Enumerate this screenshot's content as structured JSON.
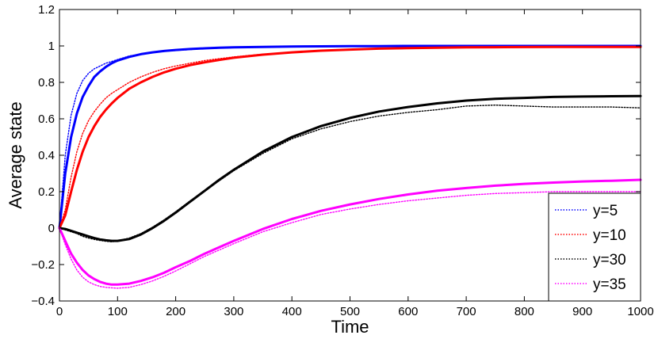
{
  "chart_data": {
    "type": "line",
    "title": "",
    "xlabel": "Time",
    "ylabel": "Average state",
    "xlim": [
      0,
      1000
    ],
    "ylim": [
      -0.4,
      1.2
    ],
    "x_ticks": [
      0,
      100,
      200,
      300,
      400,
      500,
      600,
      700,
      800,
      900,
      1000
    ],
    "x_tick_labels": [
      "0",
      "100",
      "200",
      "300",
      "400",
      "500",
      "600",
      "700",
      "800",
      "900",
      "1000"
    ],
    "y_ticks": [
      -0.4,
      -0.2,
      0,
      0.2,
      0.4,
      0.6,
      0.8,
      1,
      1.2
    ],
    "y_tick_labels": [
      "−0.4",
      "−0.2",
      "0",
      "0.2",
      "0.4",
      "0.6",
      "0.8",
      "1",
      "1.2"
    ],
    "grid": false,
    "legend_position": "bottom-right",
    "x": [
      0,
      10,
      20,
      30,
      40,
      50,
      60,
      70,
      80,
      90,
      100,
      120,
      140,
      160,
      180,
      200,
      225,
      250,
      275,
      300,
      350,
      400,
      450,
      500,
      550,
      600,
      650,
      700,
      750,
      800,
      850,
      900,
      950,
      1000
    ],
    "series": [
      {
        "name": "y=5",
        "color": "#0000ff",
        "style": "solid",
        "values": [
          0,
          0.3,
          0.5,
          0.63,
          0.72,
          0.78,
          0.83,
          0.86,
          0.885,
          0.905,
          0.92,
          0.94,
          0.955,
          0.965,
          0.972,
          0.978,
          0.983,
          0.987,
          0.99,
          0.992,
          0.995,
          0.997,
          0.998,
          0.999,
          0.999,
          1.0,
          1.0,
          1.0,
          1.0,
          1.0,
          1.0,
          1.0,
          1.0,
          1.0
        ]
      },
      {
        "name": "y=5 (simulation)",
        "color": "#0000ff",
        "style": "dotted",
        "values": [
          0,
          0.4,
          0.62,
          0.74,
          0.81,
          0.85,
          0.875,
          0.89,
          0.905,
          0.915,
          0.925,
          0.945,
          0.955,
          0.965,
          0.97,
          0.975,
          0.98,
          0.985,
          0.988,
          0.99,
          0.993,
          0.995,
          0.997,
          0.998,
          0.998,
          0.999,
          0.999,
          1.0,
          1.0,
          1.0,
          1.0,
          1.0,
          1.0,
          1.0
        ]
      },
      {
        "name": "y=10",
        "color": "#ff0000",
        "style": "solid",
        "values": [
          0,
          0.07,
          0.2,
          0.32,
          0.42,
          0.5,
          0.56,
          0.61,
          0.65,
          0.685,
          0.715,
          0.765,
          0.8,
          0.83,
          0.855,
          0.875,
          0.895,
          0.91,
          0.923,
          0.935,
          0.952,
          0.965,
          0.974,
          0.98,
          0.985,
          0.988,
          0.99,
          0.992,
          0.993,
          0.994,
          0.995,
          0.995,
          0.995,
          0.995
        ]
      },
      {
        "name": "y=10 (simulation)",
        "color": "#ff0000",
        "style": "dotted",
        "values": [
          0,
          0.1,
          0.28,
          0.42,
          0.52,
          0.59,
          0.64,
          0.68,
          0.715,
          0.74,
          0.76,
          0.8,
          0.83,
          0.855,
          0.875,
          0.89,
          0.905,
          0.92,
          0.93,
          0.94,
          0.955,
          0.965,
          0.975,
          0.98,
          0.985,
          0.988,
          0.99,
          0.992,
          0.993,
          0.994,
          0.995,
          0.995,
          0.995,
          0.995
        ]
      },
      {
        "name": "y=30",
        "color": "#000000",
        "style": "solid",
        "values": [
          0,
          -0.005,
          -0.015,
          -0.025,
          -0.035,
          -0.045,
          -0.055,
          -0.062,
          -0.067,
          -0.07,
          -0.07,
          -0.06,
          -0.035,
          0.0,
          0.04,
          0.085,
          0.145,
          0.205,
          0.265,
          0.32,
          0.42,
          0.5,
          0.56,
          0.605,
          0.64,
          0.665,
          0.685,
          0.7,
          0.71,
          0.715,
          0.72,
          0.722,
          0.724,
          0.725
        ]
      },
      {
        "name": "y=30 (simulation)",
        "color": "#000000",
        "style": "dotted",
        "values": [
          0,
          -0.01,
          -0.02,
          -0.03,
          -0.045,
          -0.055,
          -0.062,
          -0.068,
          -0.072,
          -0.075,
          -0.07,
          -0.055,
          -0.03,
          0.005,
          0.045,
          0.09,
          0.15,
          0.205,
          0.26,
          0.315,
          0.41,
          0.49,
          0.545,
          0.585,
          0.615,
          0.635,
          0.65,
          0.67,
          0.675,
          0.67,
          0.665,
          0.665,
          0.665,
          0.66
        ]
      },
      {
        "name": "y=35",
        "color": "#ff00ff",
        "style": "solid",
        "values": [
          0,
          -0.07,
          -0.14,
          -0.19,
          -0.23,
          -0.26,
          -0.28,
          -0.295,
          -0.305,
          -0.31,
          -0.31,
          -0.305,
          -0.29,
          -0.27,
          -0.245,
          -0.215,
          -0.18,
          -0.14,
          -0.105,
          -0.07,
          -0.005,
          0.05,
          0.095,
          0.13,
          0.16,
          0.185,
          0.205,
          0.22,
          0.233,
          0.243,
          0.25,
          0.256,
          0.26,
          0.265
        ]
      },
      {
        "name": "y=35 (simulation)",
        "color": "#ff00ff",
        "style": "dotted",
        "values": [
          0,
          -0.09,
          -0.17,
          -0.23,
          -0.27,
          -0.295,
          -0.31,
          -0.32,
          -0.325,
          -0.328,
          -0.33,
          -0.325,
          -0.31,
          -0.29,
          -0.265,
          -0.235,
          -0.195,
          -0.155,
          -0.12,
          -0.085,
          -0.02,
          0.03,
          0.075,
          0.105,
          0.13,
          0.15,
          0.165,
          0.18,
          0.19,
          0.195,
          0.2,
          0.2,
          0.2,
          0.2
        ]
      }
    ],
    "legend": [
      {
        "label": "y=5",
        "color": "#0000ff"
      },
      {
        "label": "y=10",
        "color": "#ff0000"
      },
      {
        "label": "y=30",
        "color": "#000000"
      },
      {
        "label": "y=35",
        "color": "#ff00ff"
      }
    ]
  }
}
